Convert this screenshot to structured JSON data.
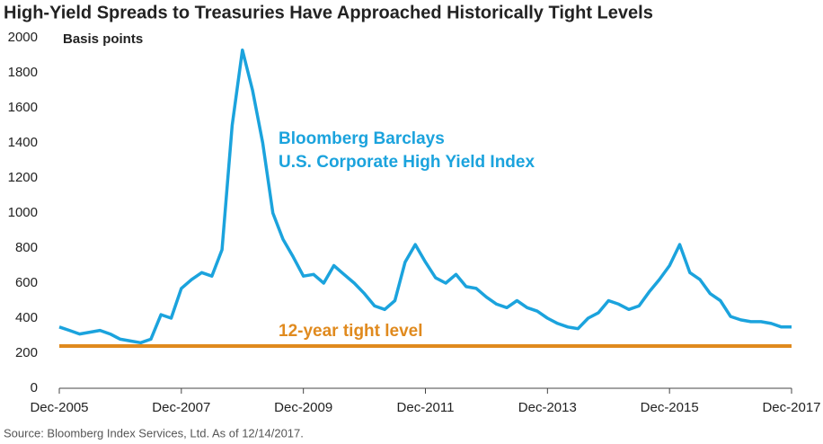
{
  "chart_data": {
    "type": "line",
    "title": "High-Yield Spreads to Treasuries Have Approached Historically Tight Levels",
    "y_label": "Basis points",
    "source": "Source: Bloomberg Index Services, Ltd. As of 12/14/2017.",
    "x": [
      "Dec-2005",
      "Feb-2006",
      "Apr-2006",
      "Jun-2006",
      "Aug-2006",
      "Oct-2006",
      "Dec-2006",
      "Feb-2007",
      "Apr-2007",
      "Jun-2007",
      "Aug-2007",
      "Oct-2007",
      "Dec-2007",
      "Feb-2008",
      "Apr-2008",
      "Jun-2008",
      "Aug-2008",
      "Oct-2008",
      "Dec-2008",
      "Feb-2009",
      "Apr-2009",
      "Jun-2009",
      "Aug-2009",
      "Oct-2009",
      "Dec-2009",
      "Feb-2010",
      "Apr-2010",
      "Jun-2010",
      "Aug-2010",
      "Oct-2010",
      "Dec-2010",
      "Feb-2011",
      "Apr-2011",
      "Jun-2011",
      "Aug-2011",
      "Oct-2011",
      "Dec-2011",
      "Feb-2012",
      "Apr-2012",
      "Jun-2012",
      "Aug-2012",
      "Oct-2012",
      "Dec-2012",
      "Feb-2013",
      "Apr-2013",
      "Jun-2013",
      "Aug-2013",
      "Oct-2013",
      "Dec-2013",
      "Feb-2014",
      "Apr-2014",
      "Jun-2014",
      "Aug-2014",
      "Oct-2014",
      "Dec-2014",
      "Feb-2015",
      "Apr-2015",
      "Jun-2015",
      "Aug-2015",
      "Oct-2015",
      "Dec-2015",
      "Feb-2016",
      "Apr-2016",
      "Jun-2016",
      "Aug-2016",
      "Oct-2016",
      "Dec-2016",
      "Feb-2017",
      "Apr-2017",
      "Jun-2017",
      "Aug-2017",
      "Oct-2017",
      "Dec-2017"
    ],
    "series": [
      {
        "name": "Bloomberg Barclays\nU.S. Corporate High Yield Index",
        "color": "#1ba3dd",
        "values": [
          350,
          330,
          310,
          320,
          330,
          310,
          280,
          270,
          260,
          280,
          420,
          400,
          570,
          620,
          660,
          640,
          790,
          1500,
          1930,
          1700,
          1400,
          1000,
          850,
          750,
          640,
          650,
          600,
          700,
          650,
          600,
          540,
          470,
          450,
          500,
          720,
          820,
          720,
          630,
          600,
          650,
          580,
          570,
          520,
          480,
          460,
          500,
          460,
          440,
          400,
          370,
          350,
          340,
          400,
          430,
          500,
          480,
          450,
          470,
          550,
          620,
          700,
          820,
          660,
          620,
          540,
          500,
          410,
          390,
          380,
          380,
          370,
          350,
          350
        ]
      }
    ],
    "reference_line": {
      "value": 241,
      "label": "12-year tight level",
      "color": "#e08a1e"
    },
    "ylim": [
      0,
      2000
    ],
    "yticks": [
      0,
      200,
      400,
      600,
      800,
      1000,
      1200,
      1400,
      1600,
      1800,
      2000
    ],
    "xticks": [
      "Dec-2005",
      "Dec-2007",
      "Dec-2009",
      "Dec-2011",
      "Dec-2013",
      "Dec-2015",
      "Dec-2017"
    ]
  }
}
